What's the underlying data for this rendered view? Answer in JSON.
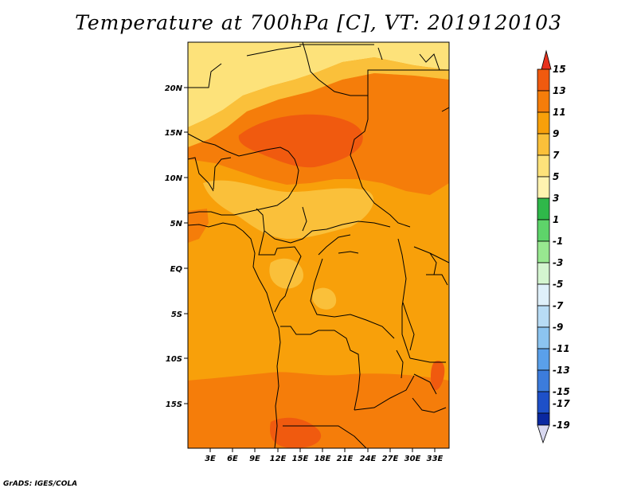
{
  "title": "Temperature at 700hPa [C], VT: 2019120103",
  "credit": "GrADS: IGES/COLA",
  "map": {
    "lat_labels": [
      "20N",
      "15N",
      "10N",
      "5N",
      "EQ",
      "5S",
      "10S",
      "15S"
    ],
    "lon_labels": [
      "3E",
      "6E",
      "9E",
      "12E",
      "15E",
      "18E",
      "21E",
      "24E",
      "27E",
      "30E",
      "33E"
    ]
  },
  "colorbar": {
    "labels": [
      "15",
      "13",
      "11",
      "9",
      "7",
      "5",
      "3",
      "1",
      "-1",
      "-3",
      "-5",
      "-7",
      "-9",
      "-11",
      "-13",
      "-15",
      "-17",
      "-19"
    ],
    "colors": [
      "#e8321e",
      "#f05a0f",
      "#f57d0a",
      "#f8a00a",
      "#fac03a",
      "#fde27a",
      "#fff3b0",
      "#2fb84a",
      "#5ed46a",
      "#98e890",
      "#d4f5d0",
      "#dff0fa",
      "#b8dcf5",
      "#8cc4f0",
      "#5aa0ea",
      "#3c7cdc",
      "#1e50c8",
      "#0a28a0",
      "#081880",
      "#d8d8f0"
    ]
  },
  "field_colors": {
    "hot": "#f05a0f",
    "warm": "#f57d0a",
    "mid": "#f8a00a",
    "mild": "#fac03a",
    "cool": "#fde27a"
  }
}
